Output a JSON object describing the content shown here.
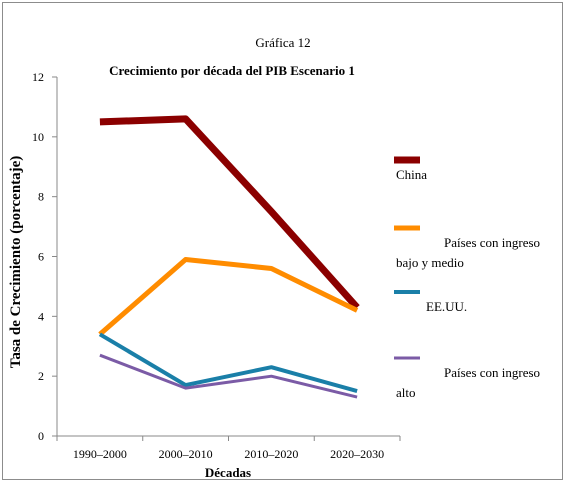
{
  "figure_label": "Gráfica 12",
  "chart_data": {
    "type": "line",
    "title": "Crecimiento por década del PIB Escenario 1",
    "xlabel": "Décadas",
    "ylabel": "Tasa de Crecimiento (porcentaje)",
    "categories": [
      "1990–2000",
      "2000–2010",
      "2010–2020",
      "2020–2030"
    ],
    "yticks": [
      "0",
      "2",
      "4",
      "6",
      "8",
      "10",
      "12"
    ],
    "ylim": [
      0,
      12
    ],
    "grid": false,
    "legend_position": "right",
    "series": [
      {
        "name": "China",
        "color": "#8b0000",
        "values": [
          10.5,
          10.6,
          7.5,
          4.3
        ],
        "legend_lines": [
          "China"
        ]
      },
      {
        "name": "Países con ingreso bajo y medio",
        "color": "#ff8c00",
        "values": [
          3.4,
          5.9,
          5.6,
          4.2
        ],
        "legend_lines": [
          "Países con ingreso",
          "bajo y medio"
        ]
      },
      {
        "name": "EE.UU.",
        "color": "#1a7fa8",
        "values": [
          3.4,
          1.7,
          2.3,
          1.5
        ],
        "legend_lines": [
          "EE.UU."
        ]
      },
      {
        "name": "Países con ingreso alto",
        "color": "#7b5ba6",
        "values": [
          2.7,
          1.6,
          2.0,
          1.3
        ],
        "legend_lines": [
          "Países con ingreso",
          "alto"
        ]
      }
    ]
  }
}
